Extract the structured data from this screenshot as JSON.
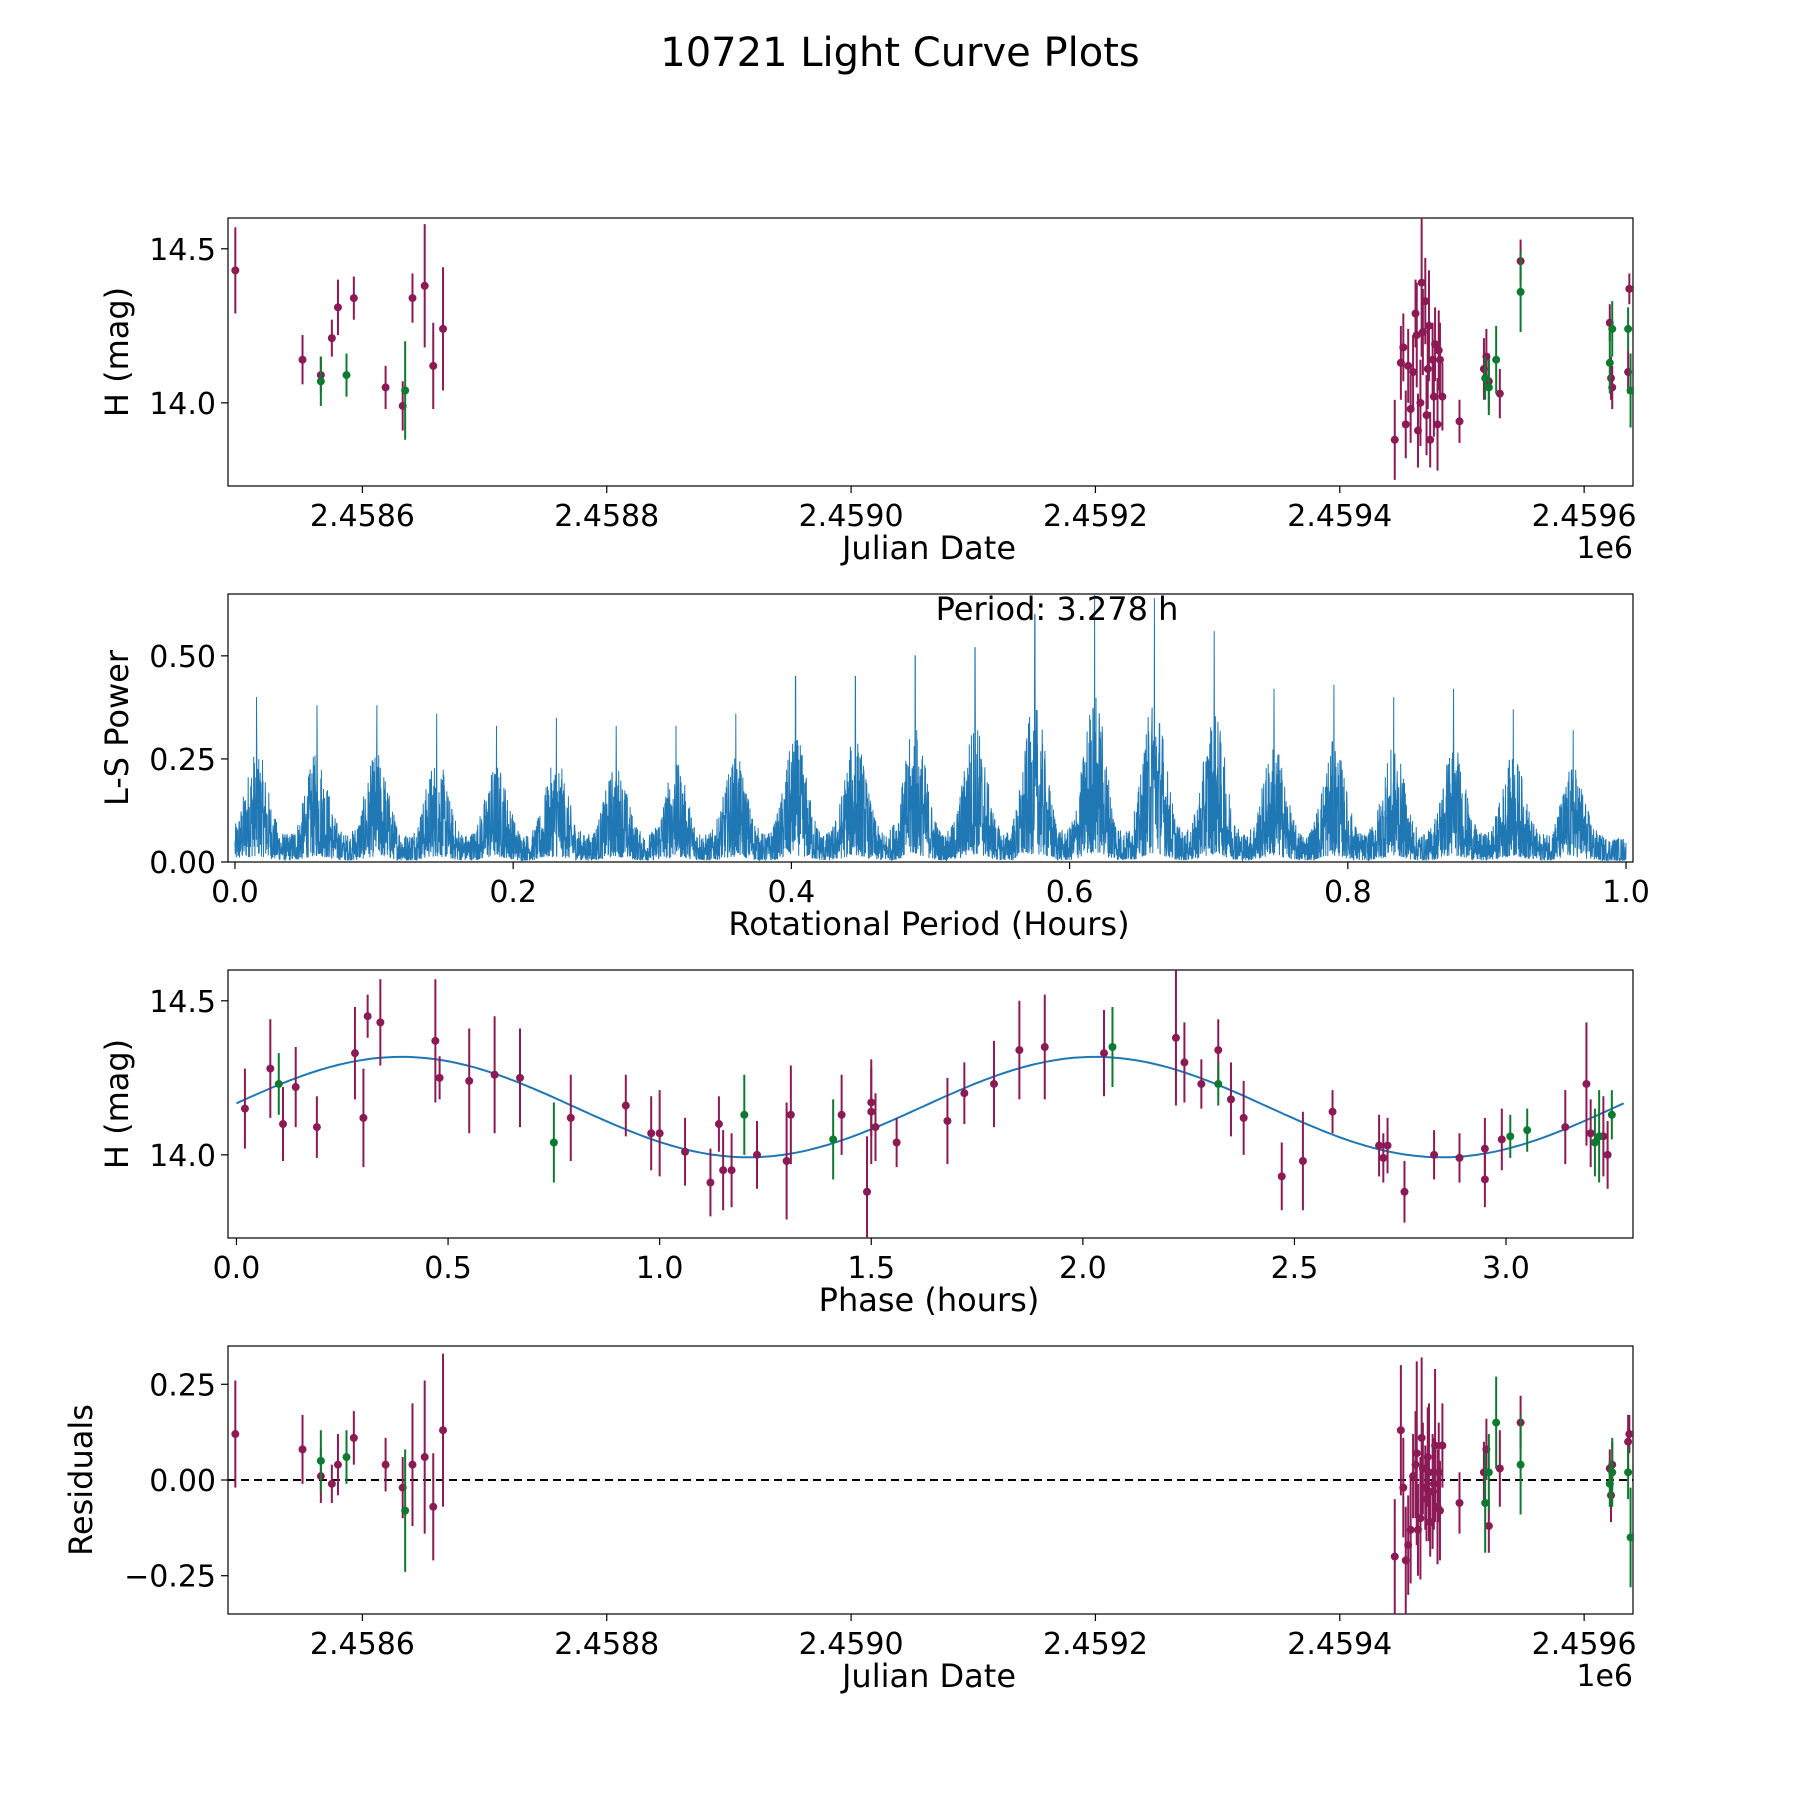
{
  "colors": {
    "magenta": "#8b1a55",
    "green": "#0e7a30",
    "fit": "#1f77b4",
    "power": "#1f77b4"
  },
  "chart_data": [
    {
      "panel": "light_curve",
      "type": "scatter",
      "suptitle": "10721 Light Curve Plots",
      "xlabel": "Julian Date",
      "ylabel": "H (mag)",
      "x_offset_label": "1e6",
      "xlim": [
        2.45849,
        2.45964
      ],
      "ylim": [
        13.73,
        14.6
      ],
      "xticks": [
        2.4586,
        2.4588,
        2.459,
        2.4592,
        2.4594,
        2.4596
      ],
      "xtick_labels": [
        "2.4586",
        "2.4588",
        "2.4590",
        "2.4592",
        "2.4594",
        "2.4596"
      ],
      "yticks": [
        14.0,
        14.5
      ],
      "ytick_labels": [
        "14.0",
        "14.5"
      ],
      "series": [
        {
          "name": "magenta",
          "x": [
            2.458496,
            2.458551,
            2.458566,
            2.458575,
            2.45858,
            2.458593,
            2.458619,
            2.458633,
            2.458641,
            2.458651,
            2.458658,
            2.458666,
            2.459445,
            2.45945,
            2.459452,
            2.459454,
            2.459456,
            2.459458,
            2.45946,
            2.459462,
            2.459463,
            2.459464,
            2.459466,
            2.459467,
            2.459468,
            2.45947,
            2.459471,
            2.459472,
            2.459473,
            2.459474,
            2.459476,
            2.459477,
            2.459478,
            2.45948,
            2.459481,
            2.459482,
            2.459484,
            2.459498,
            2.459518,
            2.45952,
            2.459522,
            2.459531,
            2.459548,
            2.459621,
            2.459622,
            2.459623,
            2.459636,
            2.459637
          ],
          "y": [
            14.43,
            14.14,
            14.09,
            14.21,
            14.31,
            14.34,
            14.05,
            13.99,
            14.34,
            14.38,
            14.12,
            14.24,
            13.88,
            14.13,
            14.18,
            13.93,
            14.12,
            13.98,
            14.1,
            14.29,
            14.22,
            13.91,
            14.0,
            14.39,
            14.23,
            14.33,
            13.96,
            14.11,
            14.25,
            13.88,
            14.14,
            14.02,
            14.19,
            13.93,
            14.17,
            14.14,
            14.02,
            13.94,
            14.11,
            14.15,
            14.07,
            14.03,
            14.46,
            14.26,
            14.08,
            14.05,
            14.1,
            14.37
          ],
          "err": [
            0.14,
            0.08,
            0.06,
            0.06,
            0.09,
            0.07,
            0.07,
            0.08,
            0.08,
            0.2,
            0.14,
            0.2,
            0.13,
            0.12,
            0.11,
            0.11,
            0.12,
            0.11,
            0.12,
            0.11,
            0.17,
            0.12,
            0.14,
            0.24,
            0.14,
            0.14,
            0.13,
            0.13,
            0.18,
            0.09,
            0.12,
            0.13,
            0.12,
            0.15,
            0.13,
            0.12,
            0.11,
            0.07,
            0.1,
            0.09,
            0.09,
            0.08,
            0.07,
            0.06,
            0.07,
            0.07,
            0.07,
            0.05
          ]
        },
        {
          "name": "green",
          "x": [
            2.458566,
            2.458587,
            2.458635,
            2.459519,
            2.459522,
            2.459528,
            2.459548,
            2.459621,
            2.459623,
            2.459636,
            2.459638
          ],
          "y": [
            14.07,
            14.09,
            14.04,
            14.08,
            14.05,
            14.14,
            14.36,
            14.13,
            14.24,
            14.24,
            14.04
          ],
          "err": [
            0.08,
            0.07,
            0.16,
            0.07,
            0.09,
            0.11,
            0.13,
            0.1,
            0.09,
            0.07,
            0.12
          ]
        }
      ]
    },
    {
      "panel": "periodogram",
      "type": "line",
      "xlabel": "Rotational Period (Hours)",
      "ylabel": "L-S Power",
      "annotation": "Period: 3.278 h",
      "xlim": [
        -0.005,
        1.005
      ],
      "ylim": [
        0.0,
        0.65
      ],
      "xticks": [
        0.0,
        0.2,
        0.4,
        0.6,
        0.8,
        1.0
      ],
      "xtick_labels": [
        "0.0",
        "0.2",
        "0.4",
        "0.6",
        "0.8",
        "1.0"
      ],
      "yticks": [
        0.0,
        0.25,
        0.5
      ],
      "ytick_labels": [
        "0.00",
        "0.25",
        "0.50"
      ],
      "x_range": [
        0.0,
        1.0
      ],
      "n_samples": 6000,
      "comb_centers": [
        0.0155,
        0.059,
        0.102,
        0.145,
        0.188,
        0.231,
        0.274,
        0.317,
        0.36,
        0.403,
        0.446,
        0.489,
        0.532,
        0.575,
        0.618,
        0.661,
        0.704,
        0.747,
        0.79,
        0.833,
        0.876,
        0.919,
        0.962
      ],
      "comb_peaks": [
        0.4,
        0.38,
        0.38,
        0.36,
        0.33,
        0.35,
        0.33,
        0.33,
        0.36,
        0.45,
        0.45,
        0.5,
        0.52,
        0.6,
        0.65,
        0.64,
        0.56,
        0.42,
        0.43,
        0.4,
        0.42,
        0.37,
        0.32
      ],
      "comb_width": 0.011,
      "background_level": 0.06
    },
    {
      "panel": "phase_fold",
      "type": "scatter",
      "xlabel": "Phase (hours)",
      "ylabel": "H (mag)",
      "xlim": [
        -0.02,
        3.3
      ],
      "ylim": [
        13.73,
        14.6
      ],
      "xticks": [
        0.0,
        0.5,
        1.0,
        1.5,
        2.0,
        2.5,
        3.0
      ],
      "xtick_labels": [
        "0.0",
        "0.5",
        "1.0",
        "1.5",
        "2.0",
        "2.5",
        "3.0"
      ],
      "yticks": [
        14.0,
        14.5
      ],
      "ytick_labels": [
        "14.0",
        "14.5"
      ],
      "fit": {
        "mean": 14.155,
        "amplitude": 0.163,
        "period": 3.278,
        "peak_phase": 0.39,
        "harmonic": 2
      },
      "series": [
        {
          "name": "magenta",
          "x": [
            0.02,
            0.08,
            0.11,
            0.14,
            0.19,
            0.28,
            0.3,
            0.31,
            0.34,
            0.47,
            0.48,
            0.55,
            0.61,
            0.67,
            0.79,
            0.92,
            0.98,
            1.0,
            1.06,
            1.12,
            1.14,
            1.15,
            1.17,
            1.23,
            1.3,
            1.31,
            1.43,
            1.49,
            1.5,
            1.5,
            1.51,
            1.56,
            1.68,
            1.72,
            1.79,
            1.85,
            1.91,
            2.05,
            2.22,
            2.24,
            2.28,
            2.32,
            2.35,
            2.38,
            2.47,
            2.52,
            2.59,
            2.7,
            2.71,
            2.72,
            2.76,
            2.83,
            2.89,
            2.95,
            2.95,
            2.99,
            3.14,
            3.19,
            3.2,
            3.23,
            3.24
          ],
          "y": [
            14.15,
            14.28,
            14.1,
            14.22,
            14.09,
            14.33,
            14.12,
            14.45,
            14.43,
            14.37,
            14.25,
            14.24,
            14.26,
            14.25,
            14.12,
            14.16,
            14.07,
            14.07,
            14.01,
            13.91,
            14.1,
            13.95,
            13.95,
            14.0,
            13.98,
            14.13,
            14.13,
            13.88,
            14.17,
            14.14,
            14.09,
            14.04,
            14.11,
            14.2,
            14.23,
            14.34,
            14.35,
            14.33,
            14.38,
            14.3,
            14.23,
            14.34,
            14.18,
            14.12,
            13.93,
            13.98,
            14.14,
            14.03,
            13.99,
            14.03,
            13.88,
            14.0,
            13.99,
            13.92,
            14.02,
            14.05,
            14.09,
            14.23,
            14.07,
            14.06,
            14.0
          ],
          "err": [
            0.13,
            0.16,
            0.12,
            0.13,
            0.1,
            0.15,
            0.16,
            0.07,
            0.14,
            0.2,
            0.07,
            0.17,
            0.19,
            0.16,
            0.14,
            0.1,
            0.12,
            0.14,
            0.11,
            0.11,
            0.09,
            0.13,
            0.12,
            0.11,
            0.19,
            0.16,
            0.13,
            0.18,
            0.11,
            0.17,
            0.11,
            0.08,
            0.14,
            0.1,
            0.14,
            0.16,
            0.17,
            0.14,
            0.22,
            0.13,
            0.08,
            0.1,
            0.12,
            0.12,
            0.11,
            0.16,
            0.07,
            0.1,
            0.08,
            0.09,
            0.1,
            0.08,
            0.08,
            0.09,
            0.1,
            0.1,
            0.12,
            0.2,
            0.11,
            0.13,
            0.11
          ]
        },
        {
          "name": "green",
          "x": [
            0.1,
            0.75,
            1.2,
            1.41,
            2.07,
            2.32,
            3.01,
            3.05,
            3.21,
            3.22,
            3.25
          ],
          "y": [
            14.23,
            14.04,
            14.13,
            14.05,
            14.35,
            14.23,
            14.06,
            14.08,
            14.04,
            14.06,
            14.13
          ],
          "err": [
            0.1,
            0.13,
            0.13,
            0.13,
            0.13,
            0.07,
            0.07,
            0.07,
            0.11,
            0.15,
            0.08
          ]
        }
      ]
    },
    {
      "panel": "residuals",
      "type": "scatter",
      "xlabel": "Julian Date",
      "ylabel": "Residuals",
      "x_offset_label": "1e6",
      "xlim": [
        2.45849,
        2.45964
      ],
      "ylim": [
        -0.35,
        0.35
      ],
      "xticks": [
        2.4586,
        2.4588,
        2.459,
        2.4592,
        2.4594,
        2.4596
      ],
      "xtick_labels": [
        "2.4586",
        "2.4588",
        "2.4590",
        "2.4592",
        "2.4594",
        "2.4596"
      ],
      "yticks": [
        -0.25,
        0.0,
        0.25
      ],
      "ytick_labels": [
        "−0.25",
        "0.00",
        "0.25"
      ],
      "reference_line": 0.0,
      "series": [
        {
          "name": "magenta",
          "x": [
            2.458496,
            2.458551,
            2.458566,
            2.458575,
            2.45858,
            2.458593,
            2.458619,
            2.458633,
            2.458641,
            2.458651,
            2.458658,
            2.458666,
            2.459445,
            2.45945,
            2.459452,
            2.459454,
            2.459456,
            2.459458,
            2.45946,
            2.459462,
            2.459463,
            2.459464,
            2.459466,
            2.459467,
            2.459468,
            2.45947,
            2.459471,
            2.459472,
            2.459473,
            2.459474,
            2.459476,
            2.459477,
            2.459478,
            2.45948,
            2.459481,
            2.459482,
            2.459484,
            2.459498,
            2.459518,
            2.45952,
            2.459522,
            2.459531,
            2.459548,
            2.459621,
            2.459622,
            2.459623,
            2.459636,
            2.459637
          ],
          "y": [
            0.12,
            0.08,
            0.01,
            -0.01,
            0.04,
            0.11,
            0.04,
            -0.02,
            0.04,
            0.06,
            -0.07,
            0.13,
            -0.2,
            0.13,
            -0.02,
            -0.21,
            -0.17,
            -0.13,
            0.01,
            0.04,
            0.07,
            -0.13,
            -0.1,
            0.11,
            0.03,
            -0.02,
            -0.05,
            0.06,
            0.02,
            -0.11,
            -0.03,
            -0.01,
            0.09,
            -0.07,
            0.02,
            -0.08,
            0.09,
            -0.06,
            0.02,
            0.08,
            -0.12,
            0.03,
            0.15,
            0.03,
            -0.04,
            0.04,
            0.1,
            0.12
          ],
          "err": [
            0.14,
            0.09,
            0.07,
            0.05,
            0.08,
            0.07,
            0.07,
            0.08,
            0.16,
            0.2,
            0.14,
            0.2,
            0.15,
            0.17,
            0.13,
            0.14,
            0.13,
            0.14,
            0.11,
            0.14,
            0.24,
            0.12,
            0.16,
            0.21,
            0.12,
            0.11,
            0.11,
            0.13,
            0.18,
            0.09,
            0.15,
            0.12,
            0.2,
            0.15,
            0.13,
            0.13,
            0.11,
            0.08,
            0.08,
            0.08,
            0.07,
            0.1,
            0.07,
            0.05,
            0.07,
            0.06,
            0.07,
            0.05
          ]
        },
        {
          "name": "green",
          "x": [
            2.458566,
            2.458587,
            2.458635,
            2.459519,
            2.459522,
            2.459528,
            2.459548,
            2.459621,
            2.459623,
            2.459636,
            2.459638
          ],
          "y": [
            0.05,
            0.06,
            -0.08,
            -0.06,
            0.02,
            0.15,
            0.04,
            -0.01,
            0.02,
            0.02,
            -0.15
          ],
          "err": [
            0.08,
            0.07,
            0.16,
            0.13,
            0.1,
            0.12,
            0.13,
            0.06,
            0.09,
            0.07,
            0.13
          ]
        }
      ]
    }
  ]
}
